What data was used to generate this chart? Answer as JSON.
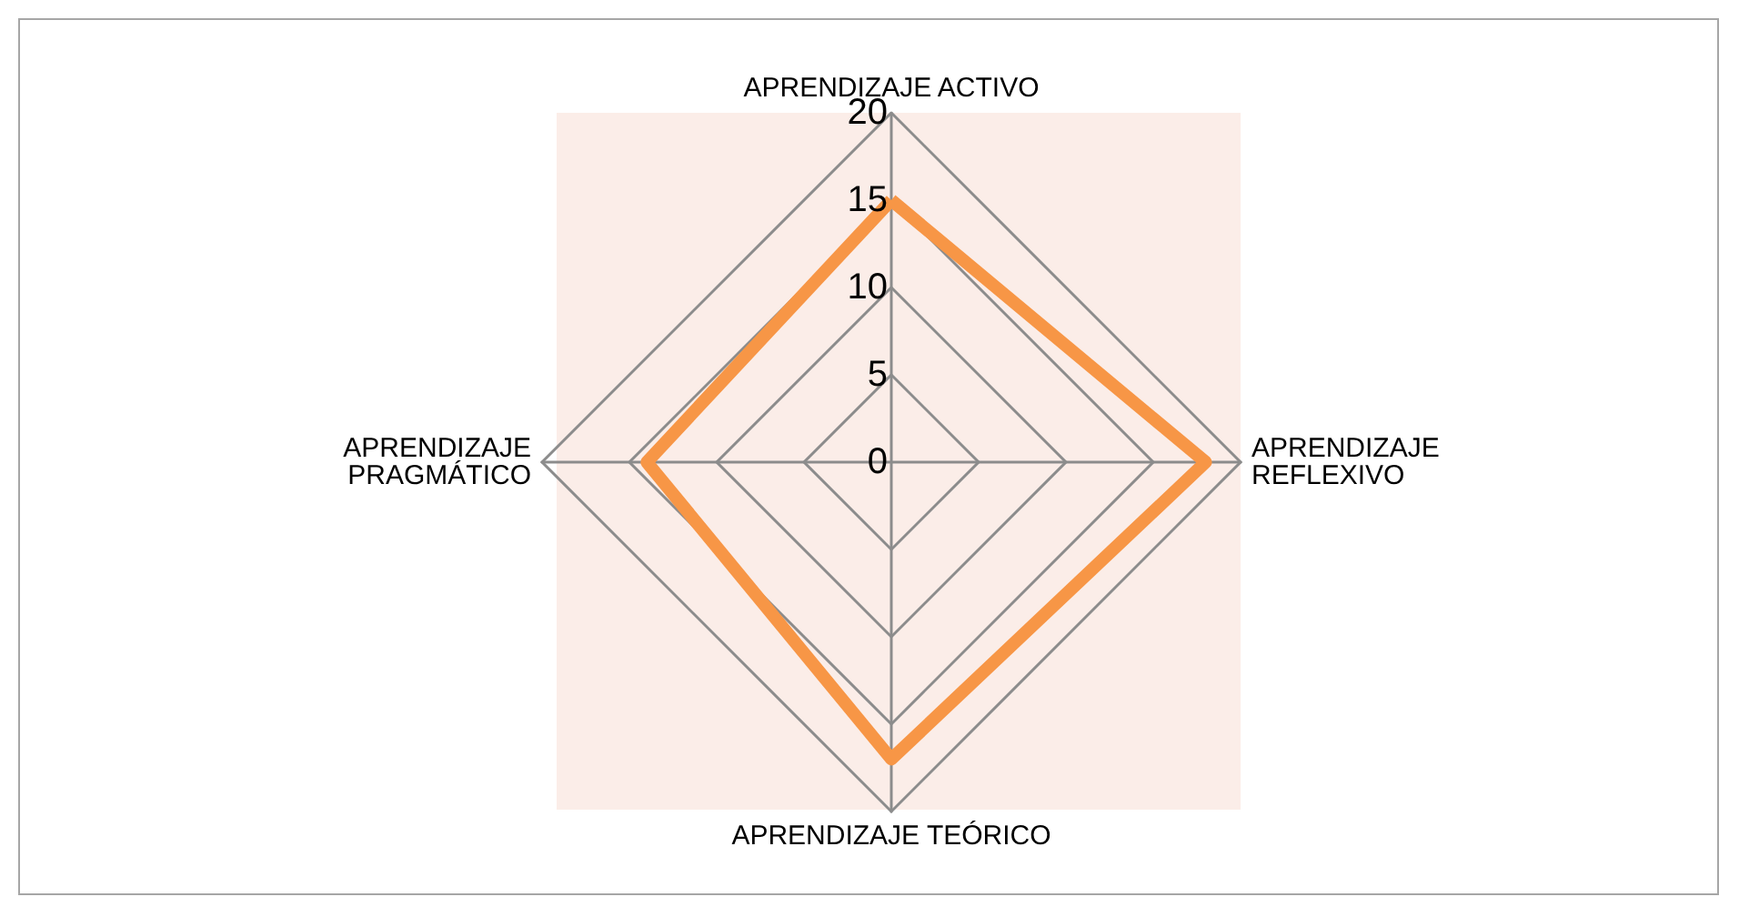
{
  "chart_data": {
    "type": "radar",
    "categories": [
      "APRENDIZAJE ACTIVO",
      "APRENDIZAJE REFLEXIVO",
      "APRENDIZAJE TEÓRICO",
      "APRENDIZAJE PRAGMÁTICO"
    ],
    "series": [
      {
        "color": "#f79646",
        "values": [
          15,
          18,
          17,
          14
        ]
      }
    ],
    "ylim": [
      0,
      20
    ],
    "yticks": [
      0,
      5,
      10,
      15,
      20
    ],
    "grid": true,
    "marker": "none"
  }
}
